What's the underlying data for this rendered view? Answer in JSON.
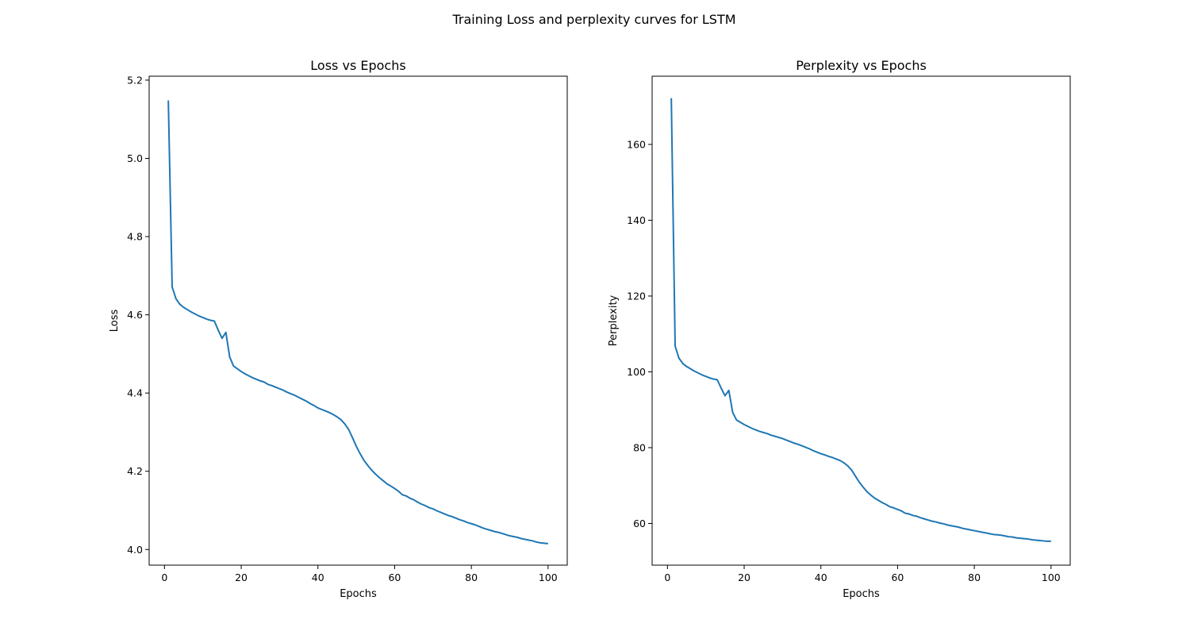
{
  "figure": {
    "title": "Training Loss and perplexity curves for LSTM",
    "line_color": "#1f77b4"
  },
  "chart_data": [
    {
      "type": "line",
      "title": "Loss vs Epochs",
      "xlabel": "Epochs",
      "ylabel": "Loss",
      "xlim": [
        -4,
        105
      ],
      "ylim": [
        3.96,
        5.21
      ],
      "xticks": [
        0,
        20,
        40,
        60,
        80,
        100
      ],
      "yticks": [
        4.0,
        4.2,
        4.4,
        4.6,
        4.8,
        5.0,
        5.2
      ],
      "ytick_labels": [
        "4.0",
        "4.2",
        "4.4",
        "4.6",
        "4.8",
        "5.0",
        "5.2"
      ],
      "grid": false,
      "series": [
        {
          "x": [
            1,
            2,
            3,
            4,
            5,
            6,
            7,
            8,
            9,
            10,
            11,
            12,
            13,
            14,
            15,
            16,
            17,
            18,
            19,
            20,
            21,
            22,
            23,
            24,
            25,
            26,
            27,
            28,
            29,
            30,
            31,
            32,
            33,
            34,
            35,
            36,
            37,
            38,
            39,
            40,
            41,
            42,
            43,
            44,
            45,
            46,
            47,
            48,
            49,
            50,
            51,
            52,
            53,
            54,
            55,
            56,
            57,
            58,
            59,
            60,
            61,
            62,
            63,
            64,
            65,
            66,
            67,
            68,
            69,
            70,
            71,
            72,
            73,
            74,
            75,
            76,
            77,
            78,
            79,
            80,
            81,
            82,
            83,
            84,
            85,
            86,
            87,
            88,
            89,
            90,
            91,
            92,
            93,
            94,
            95,
            96,
            97,
            98,
            99,
            100
          ],
          "values": [
            5.148,
            4.671,
            4.641,
            4.627,
            4.619,
            4.613,
            4.607,
            4.602,
            4.597,
            4.593,
            4.589,
            4.586,
            4.584,
            4.561,
            4.54,
            4.555,
            4.492,
            4.469,
            4.462,
            4.455,
            4.449,
            4.444,
            4.439,
            4.435,
            4.431,
            4.428,
            4.422,
            4.419,
            4.415,
            4.411,
            4.407,
            4.402,
            4.398,
            4.394,
            4.389,
            4.384,
            4.379,
            4.373,
            4.368,
            4.362,
            4.358,
            4.354,
            4.35,
            4.345,
            4.339,
            4.332,
            4.321,
            4.307,
            4.286,
            4.264,
            4.245,
            4.228,
            4.215,
            4.203,
            4.193,
            4.184,
            4.176,
            4.168,
            4.162,
            4.156,
            4.149,
            4.14,
            4.137,
            4.131,
            4.127,
            4.121,
            4.116,
            4.112,
            4.107,
            4.104,
            4.099,
            4.095,
            4.091,
            4.087,
            4.084,
            4.08,
            4.076,
            4.073,
            4.069,
            4.066,
            4.063,
            4.059,
            4.055,
            4.052,
            4.049,
            4.046,
            4.044,
            4.041,
            4.038,
            4.035,
            4.033,
            4.031,
            4.028,
            4.026,
            4.024,
            4.022,
            4.019,
            4.017,
            4.016,
            4.015
          ]
        }
      ]
    },
    {
      "type": "line",
      "title": "Perplexity vs Epochs",
      "xlabel": "Epochs",
      "ylabel": "Perplexity",
      "xlim": [
        -4,
        105
      ],
      "ylim": [
        49,
        178
      ],
      "xticks": [
        0,
        20,
        40,
        60,
        80,
        100
      ],
      "yticks": [
        60,
        80,
        100,
        120,
        140,
        160
      ],
      "ytick_labels": [
        "60",
        "80",
        "100",
        "120",
        "140",
        "160"
      ],
      "grid": false,
      "series": [
        {
          "x": [
            1,
            2,
            3,
            4,
            5,
            6,
            7,
            8,
            9,
            10,
            11,
            12,
            13,
            14,
            15,
            16,
            17,
            18,
            19,
            20,
            21,
            22,
            23,
            24,
            25,
            26,
            27,
            28,
            29,
            30,
            31,
            32,
            33,
            34,
            35,
            36,
            37,
            38,
            39,
            40,
            41,
            42,
            43,
            44,
            45,
            46,
            47,
            48,
            49,
            50,
            51,
            52,
            53,
            54,
            55,
            56,
            57,
            58,
            59,
            60,
            61,
            62,
            63,
            64,
            65,
            66,
            67,
            68,
            69,
            70,
            71,
            72,
            73,
            74,
            75,
            76,
            77,
            78,
            79,
            80,
            81,
            82,
            83,
            84,
            85,
            86,
            87,
            88,
            89,
            90,
            91,
            92,
            93,
            94,
            95,
            96,
            97,
            98,
            99,
            100
          ],
          "values": [
            172.2,
            106.8,
            103.6,
            102.2,
            101.4,
            100.8,
            100.2,
            99.7,
            99.2,
            98.8,
            98.4,
            98.1,
            97.9,
            95.7,
            93.7,
            95.1,
            89.3,
            87.3,
            86.7,
            86.1,
            85.6,
            85.1,
            84.7,
            84.3,
            84.0,
            83.7,
            83.3,
            83.0,
            82.7,
            82.4,
            82.0,
            81.6,
            81.2,
            80.9,
            80.5,
            80.1,
            79.7,
            79.2,
            78.8,
            78.4,
            78.1,
            77.7,
            77.4,
            77.0,
            76.6,
            76.0,
            75.2,
            74.1,
            72.5,
            70.9,
            69.6,
            68.4,
            67.5,
            66.7,
            66.1,
            65.5,
            65.0,
            64.4,
            64.1,
            63.7,
            63.3,
            62.7,
            62.5,
            62.1,
            61.9,
            61.5,
            61.2,
            60.9,
            60.6,
            60.4,
            60.1,
            59.9,
            59.6,
            59.4,
            59.2,
            59.0,
            58.7,
            58.5,
            58.3,
            58.1,
            57.9,
            57.7,
            57.5,
            57.3,
            57.1,
            57.0,
            56.9,
            56.7,
            56.5,
            56.4,
            56.2,
            56.1,
            56.0,
            55.9,
            55.7,
            55.6,
            55.5,
            55.4,
            55.3,
            55.3
          ]
        }
      ]
    }
  ]
}
